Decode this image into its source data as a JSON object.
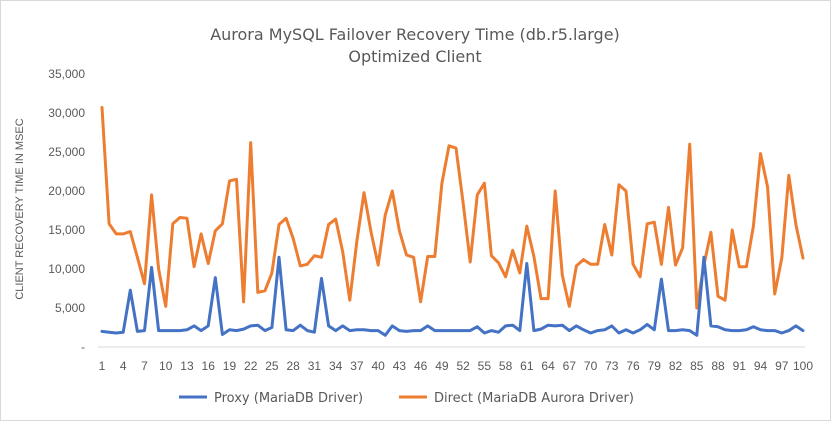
{
  "chart_data": {
    "type": "line",
    "title": "Aurora MySQL Failover Recovery Time (db.r5.large)",
    "subtitle": "Optimized Client",
    "ylabel": "CLIENT RECOVERY TIME IN MSEC",
    "xlabel": "",
    "ylim": [
      0,
      35000
    ],
    "y_ticks": [
      "-",
      "5,000",
      "10,000",
      "15,000",
      "20,000",
      "25,000",
      "30,000",
      "35,000"
    ],
    "y_tick_values": [
      0,
      5000,
      10000,
      15000,
      20000,
      25000,
      30000,
      35000
    ],
    "x": [
      1,
      2,
      3,
      4,
      5,
      6,
      7,
      8,
      9,
      10,
      11,
      12,
      13,
      14,
      15,
      16,
      17,
      18,
      19,
      20,
      21,
      22,
      23,
      24,
      25,
      26,
      27,
      28,
      29,
      30,
      31,
      32,
      33,
      34,
      35,
      36,
      37,
      38,
      39,
      40,
      41,
      42,
      43,
      44,
      45,
      46,
      47,
      48,
      49,
      50,
      51,
      52,
      53,
      54,
      55,
      56,
      57,
      58,
      59,
      60,
      61,
      62,
      63,
      64,
      65,
      66,
      67,
      68,
      69,
      70,
      71,
      72,
      73,
      74,
      75,
      76,
      77,
      78,
      79,
      80,
      81,
      82,
      83,
      84,
      85,
      86,
      87,
      88,
      89,
      90,
      91,
      92,
      93,
      94,
      95,
      96,
      97,
      98,
      99,
      100
    ],
    "x_tick_labels": [
      1,
      4,
      7,
      10,
      13,
      16,
      19,
      22,
      25,
      28,
      31,
      34,
      37,
      40,
      43,
      46,
      49,
      52,
      55,
      58,
      61,
      64,
      67,
      70,
      73,
      76,
      79,
      82,
      85,
      88,
      91,
      94,
      97,
      100
    ],
    "grid": false,
    "legend_position": "bottom",
    "series": [
      {
        "name": "Proxy (MariaDB Driver)",
        "color": "#4472c4",
        "values": [
          2000,
          1900,
          1800,
          1900,
          7300,
          2000,
          2100,
          10200,
          2100,
          2100,
          2100,
          2100,
          2200,
          2700,
          2100,
          2700,
          8900,
          1600,
          2200,
          2100,
          2300,
          2700,
          2800,
          2100,
          2500,
          11500,
          2200,
          2100,
          2800,
          2100,
          1900,
          8800,
          2700,
          2100,
          2700,
          2100,
          2200,
          2200,
          2100,
          2100,
          1500,
          2700,
          2100,
          2000,
          2100,
          2100,
          2700,
          2100,
          2100,
          2100,
          2100,
          2100,
          2100,
          2600,
          1800,
          2100,
          1900,
          2700,
          2800,
          2100,
          10700,
          2100,
          2300,
          2800,
          2700,
          2800,
          2100,
          2700,
          2200,
          1800,
          2100,
          2200,
          2700,
          1800,
          2200,
          1800,
          2200,
          2900,
          2200,
          8700,
          2100,
          2100,
          2200,
          2100,
          1500,
          11500,
          2700,
          2600,
          2200,
          2100,
          2100,
          2200,
          2600,
          2200,
          2100,
          2100,
          1800,
          2100,
          2700,
          2100
        ]
      },
      {
        "name": "Direct (MariaDB Aurora Driver)",
        "color": "#ed7d31",
        "values": [
          30700,
          15800,
          14500,
          14500,
          14800,
          11500,
          8100,
          19500,
          10000,
          5200,
          15800,
          16600,
          16500,
          10300,
          14500,
          10700,
          14900,
          15800,
          21300,
          21500,
          5800,
          26200,
          7000,
          7200,
          9500,
          15700,
          16500,
          13900,
          10400,
          10600,
          11700,
          11500,
          15700,
          16400,
          12200,
          6000,
          13600,
          19800,
          14700,
          10500,
          16900,
          20000,
          14900,
          11800,
          11500,
          5800,
          11600,
          11600,
          21000,
          25800,
          25500,
          18500,
          10900,
          19500,
          21000,
          11700,
          10800,
          9000,
          12400,
          9500,
          15500,
          11600,
          6200,
          6200,
          20000,
          9200,
          5200,
          10400,
          11200,
          10600,
          10600,
          15700,
          11800,
          20800,
          20000,
          10600,
          9000,
          15800,
          16000,
          10600,
          17900,
          10500,
          12700,
          26000,
          5000,
          10500,
          14700,
          6500,
          6000,
          15000,
          10300,
          10300,
          15500,
          24800,
          20500,
          6800,
          11400,
          22000,
          15700,
          11400
        ]
      }
    ]
  }
}
